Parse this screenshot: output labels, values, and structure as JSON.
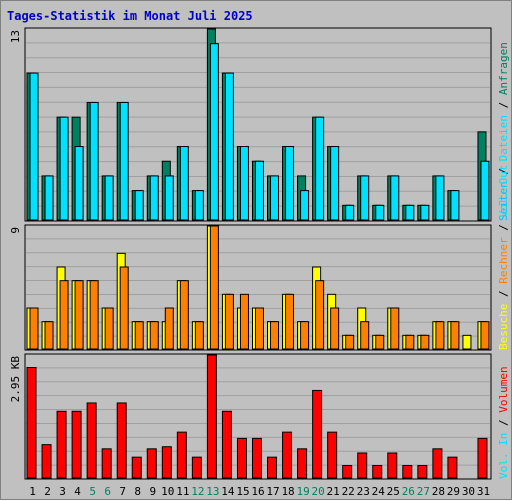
{
  "title": "Tages-Statistik im Monat Juli 2025",
  "colors": {
    "anfragen": "#008060",
    "dateien": "#00e0ff",
    "seiten": "#00c0ff",
    "besuche": "#ffff00",
    "rechner": "#ff8000",
    "volumen": "#ff0000",
    "weekend": "#008060",
    "weekday": "#000000"
  },
  "chart_data": [
    {
      "type": "bar",
      "categories": [
        "1",
        "2",
        "3",
        "4",
        "5",
        "6",
        "7",
        "8",
        "9",
        "10",
        "11",
        "12",
        "13",
        "14",
        "15",
        "16",
        "17",
        "18",
        "19",
        "20",
        "21",
        "22",
        "23",
        "24",
        "25",
        "26",
        "27",
        "28",
        "29",
        "30",
        "31"
      ],
      "ytick": "13",
      "ylim": [
        0,
        13
      ],
      "series": [
        {
          "name": "Anfragen",
          "values": [
            10,
            3,
            7,
            7,
            8,
            3,
            8,
            2,
            3,
            4,
            5,
            2,
            13,
            10,
            5,
            4,
            3,
            5,
            3,
            7,
            5,
            1,
            3,
            1,
            3,
            1,
            1,
            3,
            2,
            0,
            6
          ]
        },
        {
          "name": "Dateien",
          "values": [
            10,
            3,
            7,
            5,
            8,
            3,
            8,
            2,
            3,
            3,
            5,
            2,
            12,
            10,
            5,
            4,
            3,
            5,
            2,
            7,
            5,
            1,
            3,
            1,
            3,
            1,
            1,
            3,
            2,
            0,
            4
          ]
        }
      ],
      "right_labels": [
        "Seiten",
        "Dateien",
        "Anfragen"
      ],
      "right_separators": [
        "/",
        "/"
      ]
    },
    {
      "type": "bar",
      "categories": [
        "1",
        "2",
        "3",
        "4",
        "5",
        "6",
        "7",
        "8",
        "9",
        "10",
        "11",
        "12",
        "13",
        "14",
        "15",
        "16",
        "17",
        "18",
        "19",
        "20",
        "21",
        "22",
        "23",
        "24",
        "25",
        "26",
        "27",
        "28",
        "29",
        "30",
        "31"
      ],
      "ytick": "9",
      "ylim": [
        0,
        9
      ],
      "series": [
        {
          "name": "Besuche",
          "values": [
            3,
            2,
            6,
            5,
            5,
            3,
            7,
            2,
            2,
            2,
            5,
            2,
            9,
            4,
            3,
            3,
            2,
            4,
            2,
            6,
            4,
            1,
            3,
            1,
            3,
            1,
            1,
            2,
            2,
            1,
            2
          ]
        },
        {
          "name": "Rechner",
          "values": [
            3,
            2,
            5,
            5,
            5,
            3,
            6,
            2,
            2,
            3,
            5,
            2,
            9,
            4,
            4,
            3,
            2,
            4,
            2,
            5,
            3,
            1,
            2,
            1,
            3,
            1,
            1,
            2,
            2,
            0,
            2
          ]
        }
      ],
      "right_labels": [
        "Besuche",
        "Rechner",
        "Vol. Out"
      ],
      "right_separators": [
        "/",
        "/"
      ]
    },
    {
      "type": "bar",
      "categories": [
        "1",
        "2",
        "3",
        "4",
        "5",
        "6",
        "7",
        "8",
        "9",
        "10",
        "11",
        "12",
        "13",
        "14",
        "15",
        "16",
        "17",
        "18",
        "19",
        "20",
        "21",
        "22",
        "23",
        "24",
        "25",
        "26",
        "27",
        "28",
        "29",
        "30",
        "31"
      ],
      "ytick": "2.95 KB",
      "ylim": [
        0,
        2.95
      ],
      "series": [
        {
          "name": "Volumen",
          "values": [
            2.65,
            0.8,
            1.6,
            1.6,
            1.8,
            0.7,
            1.8,
            0.5,
            0.7,
            0.75,
            1.1,
            0.5,
            2.95,
            1.6,
            0.95,
            0.95,
            0.5,
            1.1,
            0.7,
            2.1,
            1.1,
            0.3,
            0.6,
            0.3,
            0.6,
            0.3,
            0.3,
            0.7,
            0.5,
            0.0,
            0.95
          ]
        }
      ],
      "right_labels": [
        "Vol. In",
        "Volumen"
      ],
      "right_separators": [
        "/"
      ]
    }
  ],
  "weekend_days": [
    "5",
    "6",
    "12",
    "13",
    "19",
    "20",
    "26",
    "27"
  ]
}
